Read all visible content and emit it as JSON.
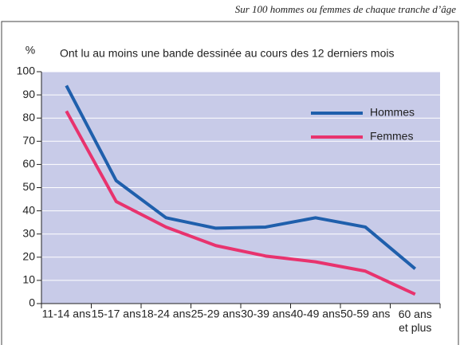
{
  "chart_data": {
    "type": "line",
    "note": "Sur 100 hommes ou femmes de chaque tranche d’âge",
    "y_label": "%",
    "title": "Ont lu au moins une bande dessinée au cours des 12 derniers mois",
    "categories": [
      "11-14 ans",
      "15-17 ans",
      "18-24 ans",
      "25-29 ans",
      "30-39 ans",
      "40-49 ans",
      "50-59 ans",
      "60 ans et plus"
    ],
    "series": [
      {
        "name": "Hommes",
        "color": "#1f5fac",
        "values": [
          94,
          53,
          37,
          32.5,
          33,
          37,
          33,
          15
        ]
      },
      {
        "name": "Femmes",
        "color": "#e8336e",
        "values": [
          83,
          44,
          33,
          25,
          20.5,
          18,
          14,
          4
        ]
      }
    ],
    "ylim": [
      0,
      100
    ],
    "yticks": [
      0,
      10,
      20,
      30,
      40,
      50,
      60,
      70,
      80,
      90,
      100
    ],
    "grid": true,
    "legend": "upper right"
  }
}
